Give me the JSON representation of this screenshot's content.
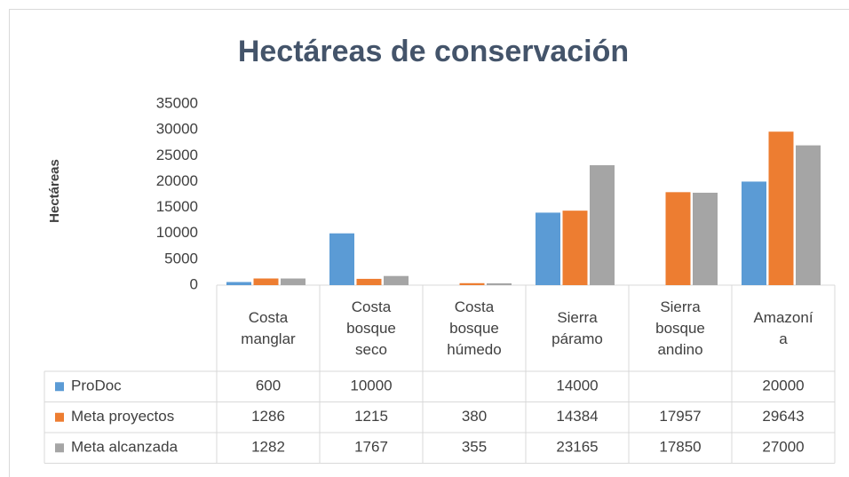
{
  "chart_data": {
    "type": "bar",
    "title": "Hectáreas de conservación",
    "y_label": "Hectáreas",
    "categories": [
      "Costa manglar",
      "Costa bosque seco",
      "Costa bosque húmedo",
      "Sierra páramo",
      "Sierra bosque andino",
      "Amazonía"
    ],
    "series": [
      {
        "name": "ProDoc",
        "color": "#5b9bd5",
        "values": [
          600,
          10000,
          null,
          14000,
          null,
          20000
        ]
      },
      {
        "name": "Meta proyectos",
        "color": "#ed7d31",
        "values": [
          1286,
          1215,
          380,
          14384,
          17957,
          29643
        ]
      },
      {
        "name": "Meta alcanzada",
        "color": "#a5a5a5",
        "values": [
          1282,
          1767,
          355,
          23165,
          17850,
          27000
        ]
      }
    ],
    "ylim": [
      0,
      35000
    ],
    "yticks": [
      0,
      5000,
      10000,
      15000,
      20000,
      25000,
      30000,
      35000
    ],
    "grid": false
  }
}
